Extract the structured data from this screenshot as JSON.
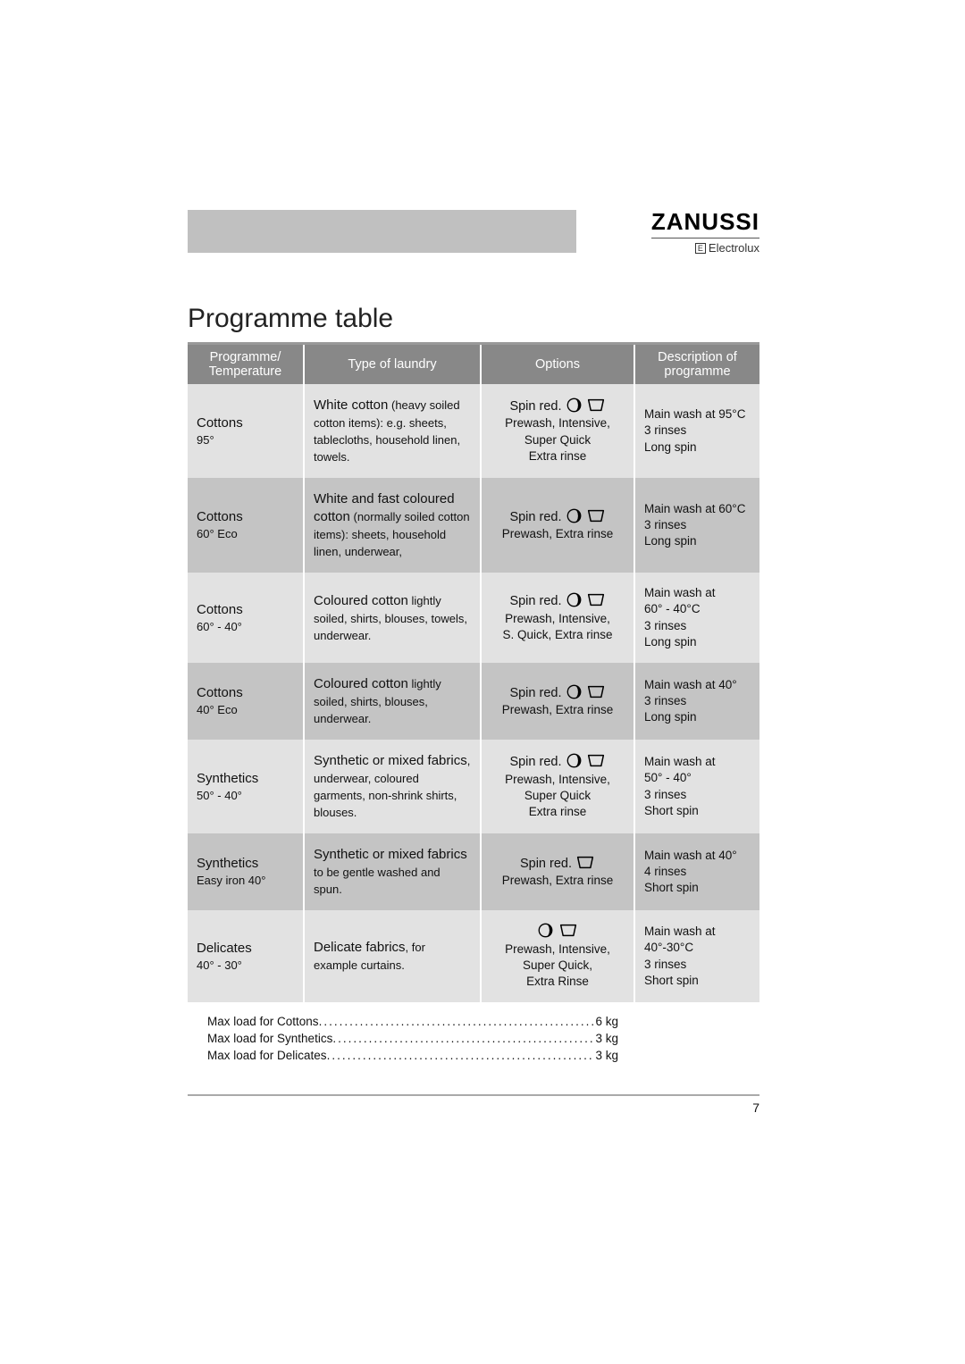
{
  "brand": {
    "main": "ZANUSSI",
    "sub": "Electrolux"
  },
  "title": "Programme table",
  "columns": [
    "Programme/\nTemperature",
    "Type of laundry",
    "Options",
    "Description of\nprogramme"
  ],
  "colors": {
    "header_bg": "#888888",
    "header_fg": "#ffffff",
    "row_odd": "#e2e2e2",
    "row_even": "#c4c4c4",
    "rule": "#999999"
  },
  "rows": [
    {
      "prog_name": "Cottons",
      "prog_temp": "95°",
      "laundry_lead": "White cotton",
      "laundry_rest": " (heavy soiled cotton items): e.g. sheets, tablecloths, household linen, towels.",
      "opt_spin": "Spin red.",
      "opt_icons": [
        "moon",
        "tub"
      ],
      "opt_lines": [
        "Prewash, Intensive,",
        "Super Quick",
        "Extra rinse"
      ],
      "desc": [
        "Main wash at 95°C",
        "3 rinses",
        "Long spin"
      ]
    },
    {
      "prog_name": "Cottons",
      "prog_temp": "60° Eco",
      "laundry_lead": "White and fast coloured cotton",
      "laundry_rest": " (normally soiled cotton items): sheets, household linen, underwear,",
      "opt_spin": "Spin red.",
      "opt_icons": [
        "moon",
        "tub"
      ],
      "opt_lines": [
        "Prewash, Extra rinse"
      ],
      "desc": [
        "Main wash at 60°C",
        "3 rinses",
        "Long spin"
      ]
    },
    {
      "prog_name": "Cottons",
      "prog_temp": "60° - 40°",
      "laundry_lead": "Coloured cotton",
      "laundry_rest": " lightly soiled, shirts, blouses, towels, underwear.",
      "opt_spin": "Spin red.",
      "opt_icons": [
        "moon",
        "tub"
      ],
      "opt_lines": [
        "Prewash, Intensive,",
        "S. Quick, Extra rinse"
      ],
      "desc": [
        "Main wash at",
        "60° - 40°C",
        "3 rinses",
        "Long spin"
      ]
    },
    {
      "prog_name": "Cottons",
      "prog_temp": "40° Eco",
      "laundry_lead": "Coloured cotton",
      "laundry_rest": " lightly soiled, shirts, blouses, underwear.",
      "opt_spin": "Spin red.",
      "opt_icons": [
        "moon",
        "tub"
      ],
      "opt_lines": [
        "Prewash, Extra rinse"
      ],
      "desc": [
        "Main wash at 40°",
        "3 rinses",
        "Long spin"
      ]
    },
    {
      "prog_name": "Synthetics",
      "prog_temp": "50° - 40°",
      "laundry_lead": "Synthetic or mixed fabrics",
      "laundry_rest": ", underwear, coloured garments, non-shrink shirts, blouses.",
      "opt_spin": "Spin red.",
      "opt_icons": [
        "moon",
        "tub"
      ],
      "opt_lines": [
        "Prewash, Intensive,",
        "Super Quick",
        "Extra rinse"
      ],
      "desc": [
        "Main wash at",
        "50° - 40°",
        "3 rinses",
        "Short spin"
      ]
    },
    {
      "prog_name": "Synthetics",
      "prog_temp": "Easy iron 40°",
      "laundry_lead": "Synthetic or mixed fabrics",
      "laundry_rest": " to be gentle washed and spun.",
      "opt_spin": "Spin red.",
      "opt_icons": [
        "tub"
      ],
      "opt_lines": [
        "Prewash, Extra rinse"
      ],
      "desc": [
        "Main wash at 40°",
        "4 rinses",
        "Short spin"
      ]
    },
    {
      "prog_name": "Delicates",
      "prog_temp": "40° - 30°",
      "laundry_lead": "Delicate fabrics",
      "laundry_rest": ", for example curtains.",
      "opt_spin": "",
      "opt_icons": [
        "moon",
        "tub"
      ],
      "opt_lines": [
        "Prewash,  Intensive,",
        "Super Quick,",
        "Extra Rinse"
      ],
      "desc": [
        "Main wash at",
        "40°-30°C",
        "3 rinses",
        "Short spin"
      ]
    }
  ],
  "loads": [
    {
      "label": "Max load for Cottons",
      "value": "6 kg"
    },
    {
      "label": "Max load for Synthetics",
      "value": "3 kg"
    },
    {
      "label": "Max load for Delicates ",
      "value": "3 kg"
    }
  ],
  "page_number": "7"
}
